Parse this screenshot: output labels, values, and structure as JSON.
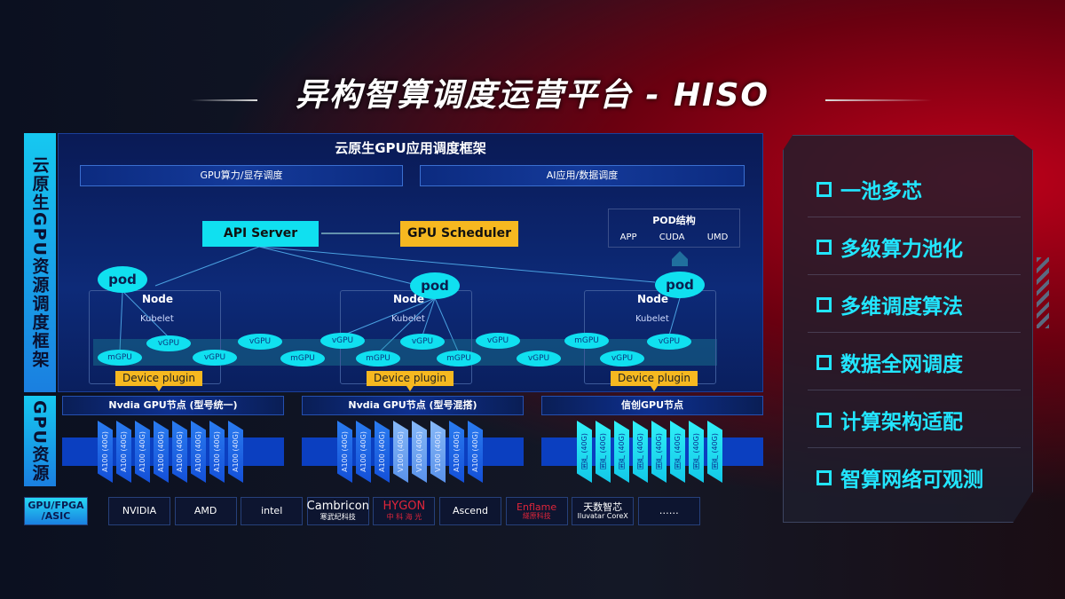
{
  "title": "异构智算调度运营平台 - HISO",
  "side_labels": {
    "framework": "云原生GPU资源调度框架",
    "resources": "GPU资源"
  },
  "framework": {
    "title": "云原生GPU应用调度框架",
    "bar_left": "GPU算力/显存调度",
    "bar_right": "AI应用/数据调度",
    "api_server": "API Server",
    "gpu_scheduler": "GPU Scheduler",
    "pod_structure": {
      "title": "POD结构",
      "items": [
        "APP",
        "CUDA",
        "UMD"
      ]
    },
    "pod": "pod",
    "node": "Node",
    "kubelet": "Kubelet",
    "device_plugin": "Device plugin",
    "units": [
      "mGPU",
      "vGPU",
      "vGPU",
      "vGPU",
      "mGPU",
      "vGPU",
      "mGPU",
      "vGPU",
      "mGPU",
      "vGPU",
      "vGPU",
      "mGPU",
      "vGPU",
      "vGPU"
    ]
  },
  "gpu_groups": [
    {
      "title": "Nvdia GPU节点 (型号统一)",
      "cards": [
        "A100 (40G)",
        "A100 (40G)",
        "A100 (40G)",
        "A100 (40G)",
        "A100 (40G)",
        "A100 (40G)",
        "A100 (40G)",
        "A100 (40G)"
      ]
    },
    {
      "title": "Nvdia GPU节点 (型号混搭)",
      "cards": [
        "A100 (40G)",
        "A100 (40G)",
        "A100 (40G)",
        "V100 (40G)",
        "V100 (40G)",
        "V100 (40G)",
        "A100 (40G)",
        "A100 (40G)"
      ]
    },
    {
      "title": "信创GPU节点",
      "cards": [
        "国产 (40G)",
        "国产 (40G)",
        "国产 (40G)",
        "国产 (40G)",
        "国产 (40G)",
        "国产 (40G)",
        "国产 (40G)",
        "国产 (40G)"
      ]
    }
  ],
  "vendors": {
    "label": "GPU/FPGA /ASIC",
    "items": [
      [
        "NVIDIA",
        ""
      ],
      [
        "AMD",
        ""
      ],
      [
        "intel",
        ""
      ],
      [
        "Cambricon",
        "寒武纪科技"
      ],
      [
        "HYGON",
        "中 科 海 光"
      ],
      [
        "Ascend",
        ""
      ],
      [
        "Enflame",
        "燧原科技"
      ],
      [
        "天数智芯",
        "Iluvatar CoreX"
      ],
      [
        "……",
        ""
      ]
    ]
  },
  "features": [
    "一池多芯",
    "多级算力池化",
    "多维调度算法",
    "数据全网调度",
    "计算架构适配",
    "智算网络可观测"
  ],
  "colors": {
    "accent_cyan": "#10e0f0",
    "scheduler_orange": "#f6b820",
    "panel_blue": "#0d2a78"
  }
}
